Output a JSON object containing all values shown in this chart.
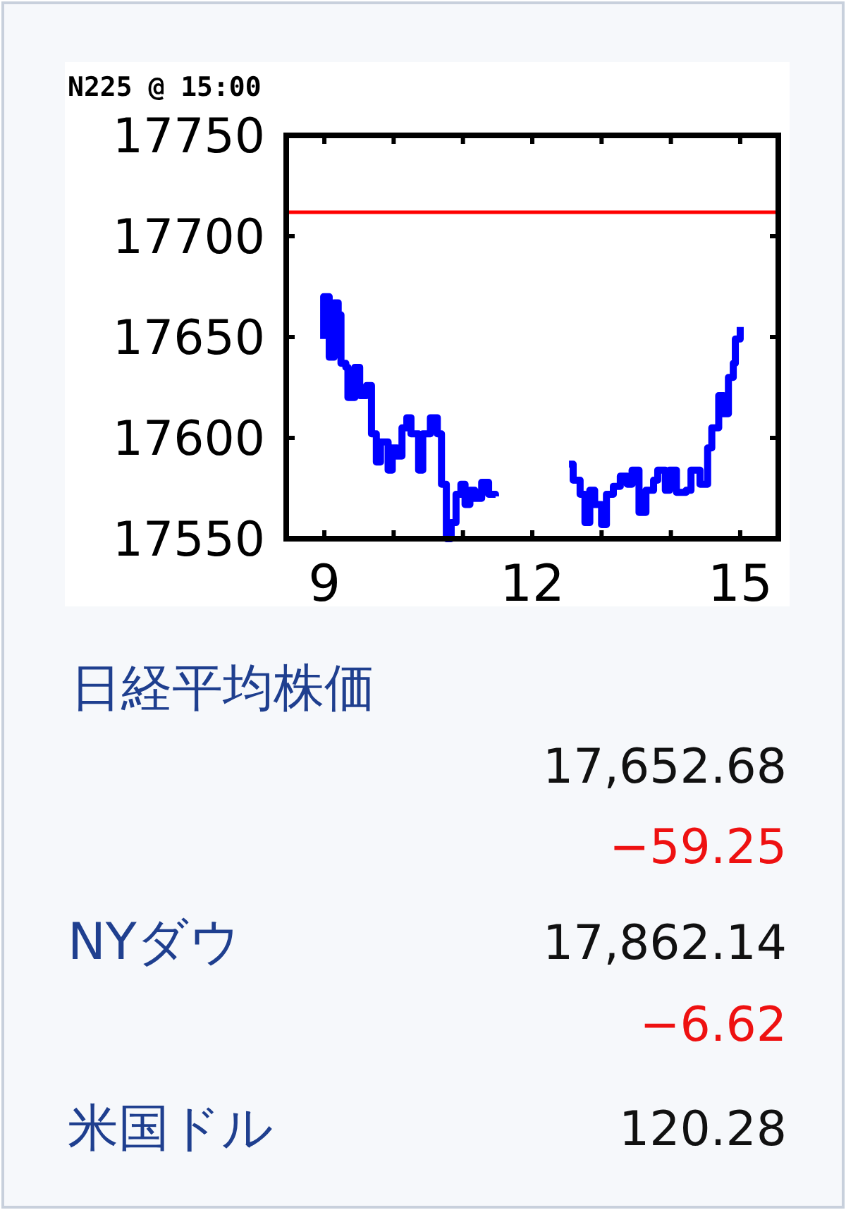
{
  "chart_data": {
    "type": "step",
    "title": "N225 @ 15:00",
    "x": [
      8.99,
      8.99,
      9.07,
      9.14,
      9.2,
      9.24,
      9.31,
      9.34,
      9.44,
      9.51,
      9.61,
      9.68,
      9.75,
      9.81,
      9.92,
      9.98,
      10.05,
      10.12,
      10.19,
      10.25,
      10.36,
      10.42,
      10.53,
      10.63,
      10.69,
      10.76,
      10.83,
      10.9,
      10.97,
      11.03,
      11.1,
      11.17,
      11.27,
      11.37,
      11.47,
      12.0,
      12.53,
      12.59,
      12.69,
      12.76,
      12.83,
      12.9,
      13.0,
      13.07,
      13.17,
      13.27,
      13.37,
      13.44,
      13.54,
      13.64,
      13.75,
      13.81,
      13.92,
      13.98,
      14.08,
      14.22,
      14.29,
      14.42,
      14.53,
      14.59,
      14.69,
      14.76,
      14.83,
      14.9,
      14.93,
      15.0
    ],
    "series": [
      {
        "color": "#0000ff",
        "values": [
          17649,
          17670,
          17640,
          17667,
          17661,
          17637,
          17635,
          17620,
          17635,
          17621,
          17626,
          17602,
          17588,
          17598,
          17584,
          17595,
          17591,
          17605,
          17610,
          17602,
          17584,
          17602,
          17610,
          17602,
          17577,
          17550,
          17558,
          17572,
          17577,
          17567,
          17574,
          17570,
          17578,
          17572,
          17571,
          null,
          17587,
          17579,
          17572,
          17558,
          17574,
          17567,
          17557,
          17572,
          17576,
          17581,
          17577,
          17584,
          17563,
          17574,
          17579,
          17584,
          17574,
          17584,
          17573,
          17574,
          17584,
          17577,
          17595,
          17605,
          17621,
          17612,
          17630,
          17637,
          17649,
          17655
        ]
      }
    ],
    "xlim": [
      8.45,
      15.55
    ],
    "xticks": [
      9,
      {
        "value": 10,
        "label": null
      },
      {
        "value": 11,
        "label": null
      },
      12,
      {
        "value": 13,
        "label": null
      },
      {
        "value": 14,
        "label": null
      },
      15
    ],
    "ylim": [
      17550,
      17750
    ],
    "yticks": [
      17550,
      17600,
      17650,
      17700,
      17750
    ],
    "ref_lines": [
      {
        "axis": "y",
        "value": 17711.93,
        "color": "#ff0000"
      }
    ],
    "grid": false,
    "marker": "none",
    "annotations": [
      "日経平均株価",
      "17,652.68",
      "−59.25",
      "NYダウ",
      "17,862.14",
      "−6.62",
      "米国ドル",
      "120.28"
    ]
  }
}
